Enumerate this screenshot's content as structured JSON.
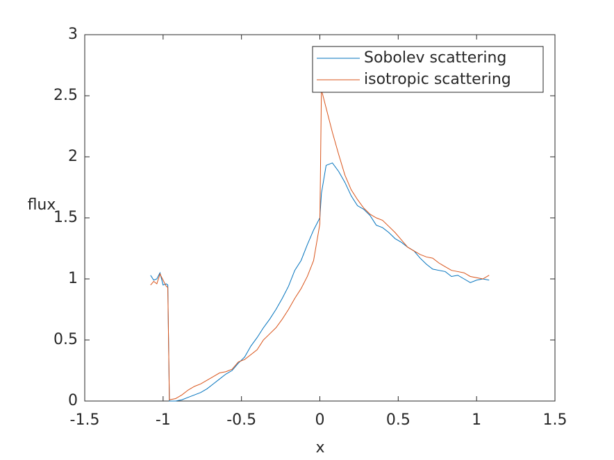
{
  "chart_data": {
    "type": "line",
    "xlabel": "x",
    "ylabel": "flux",
    "x": [
      -1.08,
      -1.06,
      -1.04,
      -1.02,
      -1.0,
      -0.98,
      -0.97,
      -0.96,
      -0.92,
      -0.88,
      -0.84,
      -0.8,
      -0.76,
      -0.72,
      -0.68,
      -0.64,
      -0.6,
      -0.56,
      -0.52,
      -0.48,
      -0.44,
      -0.4,
      -0.36,
      -0.32,
      -0.28,
      -0.24,
      -0.2,
      -0.16,
      -0.12,
      -0.08,
      -0.04,
      0.0,
      0.01,
      0.04,
      0.08,
      0.12,
      0.16,
      0.2,
      0.24,
      0.28,
      0.32,
      0.36,
      0.4,
      0.44,
      0.48,
      0.52,
      0.56,
      0.6,
      0.64,
      0.68,
      0.72,
      0.76,
      0.8,
      0.84,
      0.88,
      0.92,
      0.96,
      1.0,
      1.04,
      1.08
    ],
    "series": [
      {
        "name": "Sobolev scattering",
        "color": "#0072bd",
        "values": [
          1.03,
          0.99,
          1.0,
          1.05,
          0.95,
          0.96,
          0.95,
          0.0,
          0.0,
          0.01,
          0.03,
          0.05,
          0.07,
          0.1,
          0.14,
          0.18,
          0.22,
          0.25,
          0.31,
          0.36,
          0.45,
          0.52,
          0.6,
          0.67,
          0.75,
          0.84,
          0.94,
          1.07,
          1.15,
          1.28,
          1.4,
          1.5,
          1.7,
          1.93,
          1.95,
          1.88,
          1.79,
          1.68,
          1.6,
          1.57,
          1.52,
          1.44,
          1.42,
          1.38,
          1.33,
          1.3,
          1.26,
          1.23,
          1.17,
          1.12,
          1.08,
          1.07,
          1.06,
          1.02,
          1.03,
          1.0,
          0.97,
          0.99,
          1.0,
          0.99
        ]
      },
      {
        "name": "isotropic scattering",
        "color": "#d95319",
        "values": [
          0.95,
          0.98,
          0.96,
          1.04,
          0.99,
          0.94,
          0.93,
          0.01,
          0.02,
          0.05,
          0.09,
          0.12,
          0.14,
          0.17,
          0.2,
          0.23,
          0.24,
          0.26,
          0.32,
          0.34,
          0.38,
          0.42,
          0.5,
          0.55,
          0.6,
          0.67,
          0.75,
          0.84,
          0.92,
          1.02,
          1.15,
          1.45,
          2.55,
          2.4,
          2.2,
          2.02,
          1.85,
          1.73,
          1.65,
          1.58,
          1.53,
          1.5,
          1.48,
          1.43,
          1.38,
          1.32,
          1.26,
          1.23,
          1.2,
          1.18,
          1.17,
          1.13,
          1.1,
          1.07,
          1.06,
          1.05,
          1.02,
          1.01,
          1.0,
          1.03
        ]
      }
    ],
    "xlim": [
      -1.5,
      1.5
    ],
    "xticks": [
      -1.5,
      -1,
      -0.5,
      0,
      0.5,
      1,
      1.5
    ],
    "ylim": [
      0,
      3
    ],
    "yticks": [
      0,
      0.5,
      1,
      1.5,
      2,
      2.5,
      3
    ],
    "grid": false,
    "legend": "northeast"
  }
}
